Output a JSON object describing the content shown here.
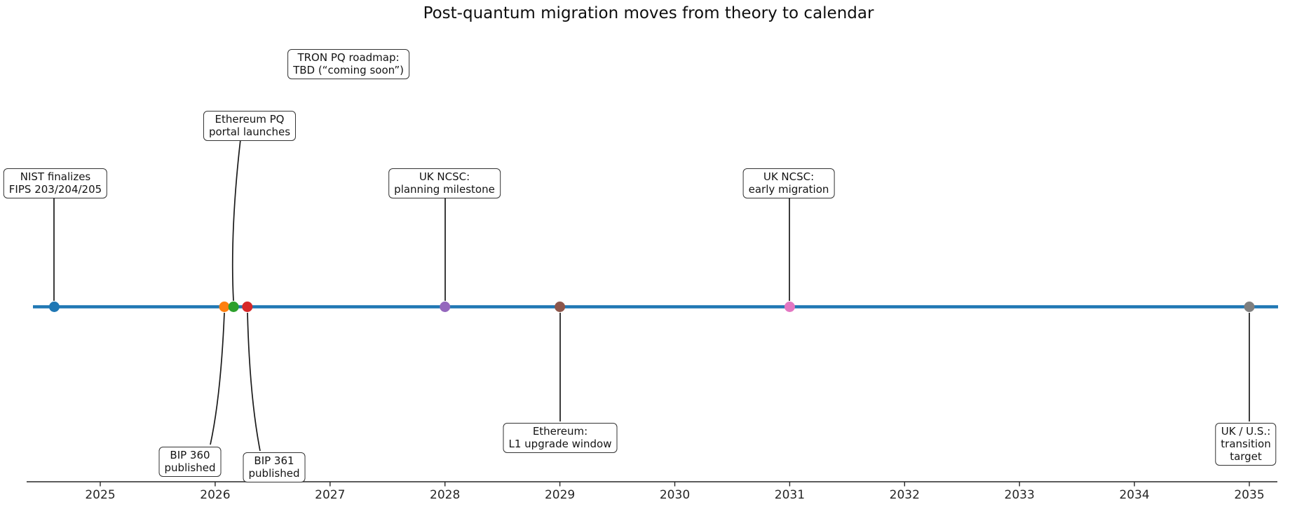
{
  "chart_data": {
    "type": "timeline",
    "title": "Post-quantum migration moves from theory to calendar",
    "x_axis": {
      "tick_labels": [
        "2025",
        "2026",
        "2027",
        "2028",
        "2029",
        "2030",
        "2031",
        "2032",
        "2033",
        "2034",
        "2035"
      ],
      "tick_years": [
        2025,
        2026,
        2027,
        2028,
        2029,
        2030,
        2031,
        2032,
        2033,
        2034,
        2035
      ],
      "visible_range_years": [
        2024.41,
        2035.25
      ]
    },
    "timeline_color": "#1f77b4",
    "events": [
      {
        "id": "nist-finalizes-fips",
        "label": "NIST finalizes\nFIPS 203/204/205",
        "year": 2024.6,
        "marker_color": "#1f77b4",
        "label_side": "above"
      },
      {
        "id": "bip-360-published",
        "label": "BIP 360\npublished",
        "year": 2026.08,
        "marker_color": "#ff7f0e",
        "label_side": "below"
      },
      {
        "id": "ethereum-pq-portal-launches",
        "label": "Ethereum PQ\nportal launches",
        "year": 2026.16,
        "marker_color": "#2ca02c",
        "label_side": "above"
      },
      {
        "id": "bip-361-published",
        "label": "BIP 361\npublished",
        "year": 2026.28,
        "marker_color": "#d62728",
        "label_side": "below"
      },
      {
        "id": "uk-ncsc-planning-milestone",
        "label": "UK NCSC:\nplanning milestone",
        "year": 2028,
        "marker_color": "#9467bd",
        "label_side": "above"
      },
      {
        "id": "ethereum-l1-upgrade-window",
        "label": "Ethereum:\nL1 upgrade window",
        "year": 2029,
        "marker_color": "#8c564b",
        "label_side": "below"
      },
      {
        "id": "uk-ncsc-early-migration",
        "label": "UK NCSC:\nearly migration",
        "year": 2031,
        "marker_color": "#e377c2",
        "label_side": "above"
      },
      {
        "id": "uk-us-transition-target",
        "label": "UK / U.S.:\ntransition target",
        "year": 2035,
        "marker_color": "#7f7f7f",
        "label_side": "below"
      }
    ],
    "floating_annotations": [
      {
        "id": "tron-pq-roadmap",
        "label": "TRON PQ roadmap:\nTBD (“coming soon”)"
      }
    ]
  }
}
